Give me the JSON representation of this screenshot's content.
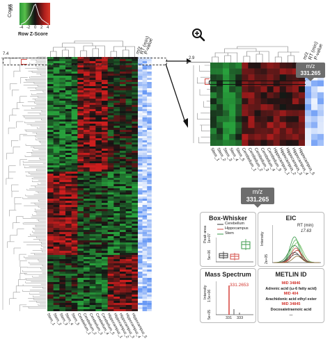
{
  "color_key": {
    "y_axis_label": "Count",
    "y_ticks": [
      "800",
      "400",
      "0"
    ],
    "x_ticks": [
      "-4",
      "-2",
      "0",
      "2",
      "4"
    ],
    "x_axis_label": "Row Z-Score"
  },
  "main_heatmap": {
    "left_tick": "7.4",
    "column_headers": [
      "m/z",
      "RT (min)",
      "P-value"
    ],
    "column_labels": [
      "Stem_1",
      "Stem_2",
      "Stem_3",
      "Stem_4",
      "Stem_5",
      "Cerebellum_1",
      "Cerebellum_2",
      "Cerebellum_3",
      "Cerebellum_4",
      "Cerebellum_5",
      "Hippocampus_1",
      "Hippocampus_2",
      "Hippocampus_3",
      "Hippocampus_4",
      "Hippocampus_5"
    ]
  },
  "zoom_heatmap": {
    "zoom_icon": "zoom-in-icon",
    "left_tick": "2.9",
    "column_headers": [
      "m/z",
      "RT (min)",
      "P-value"
    ],
    "tooltip_line1": "m/z",
    "tooltip_line2": "331.265",
    "column_labels": [
      "Stem_1",
      "Stem_2",
      "Stem_3",
      "Stem_4",
      "Stem_5",
      "Cerebellum_1",
      "Cerebellum_2",
      "Cerebellum_3",
      "Cerebellum_4",
      "Cerebellum_5",
      "Hippocampus_1",
      "Hippocampus_2",
      "Hippocampus_3",
      "Hippocampus_4",
      "Hippocampus_5"
    ]
  },
  "feature_tooltip": {
    "line1": "m/z",
    "line2": "331.265"
  },
  "box_whisker": {
    "title": "Box-Whisker",
    "y_label": "Peak area",
    "y_ticks": [
      "5e+06",
      "1e+07"
    ],
    "legend": [
      "Cerebellum",
      "Hippocampus",
      "Stem"
    ],
    "colors": {
      "cerebellum": "#333333",
      "hippocampus": "#d24a43",
      "stem": "#3a9a4a"
    }
  },
  "eic": {
    "title": "EIC",
    "y_label": "Intensity",
    "y_tick": "2e+05",
    "rt_label": "RT (min)",
    "rt_value": "17.63"
  },
  "mass_spectrum": {
    "title": "Mass Spectrum",
    "y_label": "Intensity",
    "y_ticks": [
      "5e+05",
      "1.5e+06"
    ],
    "peak_label": "331.2653",
    "x_ticks": [
      "331",
      "333"
    ]
  },
  "metlin": {
    "title": "METLIN ID",
    "entries": [
      {
        "id": "MID 34846",
        "name": "Adrenic acid (ω-6 fatty acid)"
      },
      {
        "id": "MID 404",
        "name": "Arachidonic acid ethyl ester"
      },
      {
        "id": "MID 34845",
        "name": "Docosatetraenoic acid"
      }
    ],
    "more": "..."
  }
}
